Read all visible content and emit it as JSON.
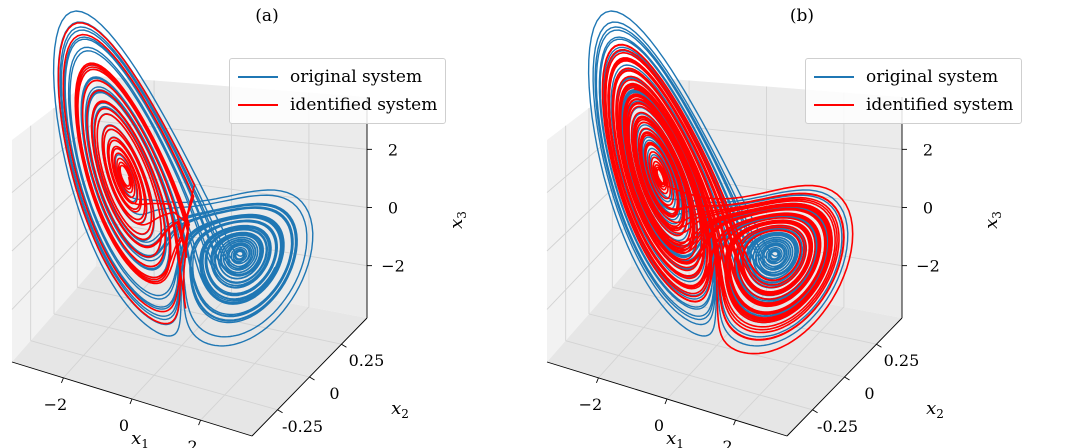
{
  "chart_data": [
    {
      "type": "line",
      "subtype": "3d-trajectory",
      "panel_label": "(a)",
      "series": [
        {
          "name": "original system",
          "color": "#1f77b4",
          "region": "both attractor lobes"
        },
        {
          "name": "identified system",
          "color": "#ff0000",
          "region": "left lobe only"
        }
      ],
      "x_axis": {
        "label": "x",
        "label_sub": "1",
        "ticks": [
          "−2",
          "0",
          "2"
        ],
        "ticks_values": [
          -2,
          0,
          2
        ],
        "range": [
          -3.5,
          3.5
        ]
      },
      "y_axis": {
        "label": "x",
        "label_sub": "2",
        "ticks": [
          "-0.25",
          "0",
          "0.25"
        ],
        "ticks_values": [
          -0.25,
          0,
          0.25
        ],
        "range": [
          -0.45,
          0.45
        ]
      },
      "z_axis": {
        "label": "x",
        "label_sub": "3",
        "ticks": [
          "−2",
          "0",
          "2"
        ],
        "ticks_values": [
          -2,
          0,
          2
        ],
        "range": [
          -3.8,
          3.8
        ]
      },
      "grid": true,
      "legend_position": "top-right"
    },
    {
      "type": "line",
      "subtype": "3d-trajectory",
      "panel_label": "(b)",
      "series": [
        {
          "name": "original system",
          "color": "#1f77b4",
          "region": "hidden beneath identified"
        },
        {
          "name": "identified system",
          "color": "#ff0000",
          "region": "both attractor lobes"
        }
      ],
      "x_axis": {
        "label": "x",
        "label_sub": "1",
        "ticks": [
          "−2",
          "0",
          "2"
        ],
        "ticks_values": [
          -2,
          0,
          2
        ],
        "range": [
          -3.5,
          3.5
        ]
      },
      "y_axis": {
        "label": "x",
        "label_sub": "2",
        "ticks": [
          "-0.25",
          "0",
          "0.25"
        ],
        "ticks_values": [
          -0.25,
          0,
          0.25
        ],
        "range": [
          -0.45,
          0.45
        ]
      },
      "z_axis": {
        "label": "x",
        "label_sub": "3",
        "ticks": [
          "−2",
          "0",
          "2"
        ],
        "ticks_values": [
          -2,
          0,
          2
        ],
        "range": [
          -3.8,
          3.8
        ]
      },
      "grid": true,
      "legend_position": "top-right"
    }
  ]
}
